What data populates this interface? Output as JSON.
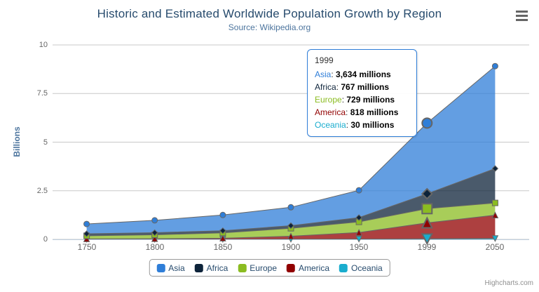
{
  "chart_data": {
    "type": "area",
    "stacking": "normal",
    "title": "Historic and Estimated Worldwide Population Growth by Region",
    "subtitle": "Source: Wikipedia.org",
    "ylabel": "Billions",
    "xlabel": "",
    "unit": "millions",
    "ylim": [
      0,
      10
    ],
    "yticks": [
      "0",
      "2.5",
      "5",
      "7.5",
      "10"
    ],
    "grid": true,
    "legend_position": "bottom",
    "categories": [
      "1750",
      "1800",
      "1850",
      "1900",
      "1950",
      "1999",
      "2050"
    ],
    "series": [
      {
        "name": "Asia",
        "color": "#2f7ed8",
        "marker": "circle",
        "values": [
          502,
          635,
          809,
          947,
          1402,
          3634,
          5268
        ]
      },
      {
        "name": "Africa",
        "color": "#0d233a",
        "marker": "diamond",
        "values": [
          106,
          107,
          111,
          133,
          221,
          767,
          1766
        ]
      },
      {
        "name": "Europe",
        "color": "#8bbc21",
        "marker": "square",
        "values": [
          163,
          203,
          276,
          408,
          547,
          729,
          628
        ]
      },
      {
        "name": "America",
        "color": "#910000",
        "marker": "triangle",
        "values": [
          18,
          31,
          54,
          156,
          339,
          818,
          1201
        ]
      },
      {
        "name": "Oceania",
        "color": "#1aadce",
        "marker": "triangle-down",
        "values": [
          2,
          2,
          2,
          6,
          13,
          30,
          46
        ]
      }
    ],
    "hover_index": 5,
    "line_color": "#666666",
    "grid_color": "#c8c8c8",
    "axis_line_color": "#c0d0e0"
  },
  "tooltip": {
    "header": "1999",
    "border_color": "#2f7ed8",
    "rows": [
      {
        "name": "Asia",
        "value": "3,634 millions",
        "color": "#2f7ed8"
      },
      {
        "name": "Africa",
        "value": "767 millions",
        "color": "#0d233a"
      },
      {
        "name": "Europe",
        "value": "729 millions",
        "color": "#8bbc21"
      },
      {
        "name": "America",
        "value": "818 millions",
        "color": "#910000"
      },
      {
        "name": "Oceania",
        "value": "30 millions",
        "color": "#1aadce"
      }
    ]
  },
  "legend": {
    "items": [
      {
        "label": "Asia",
        "color": "#2f7ed8"
      },
      {
        "label": "Africa",
        "color": "#0d233a"
      },
      {
        "label": "Europe",
        "color": "#8bbc21"
      },
      {
        "label": "America",
        "color": "#910000"
      },
      {
        "label": "Oceania",
        "color": "#1aadce"
      }
    ]
  },
  "credits": "Highcharts.com",
  "icons": {
    "context_menu": "hamburger-bars"
  }
}
